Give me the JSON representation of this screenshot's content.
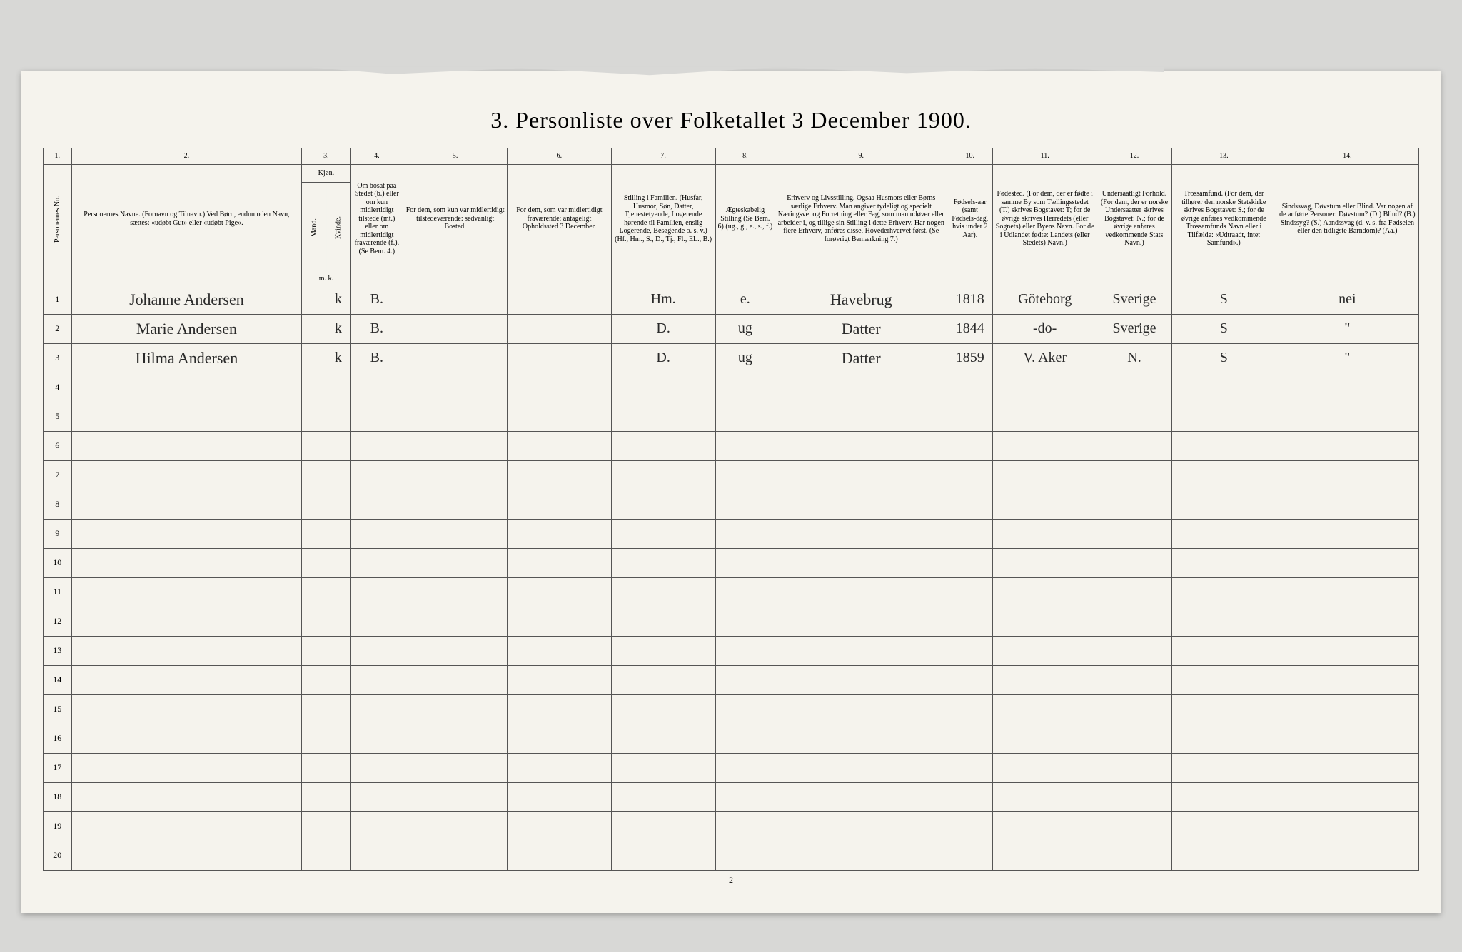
{
  "title": "3. Personliste over Folketallet 3 December 1900.",
  "page_footer": "2",
  "colors": {
    "page_bg": "#d8d8d6",
    "paper": "#f5f3ed",
    "rule": "#555555",
    "ink": "#2a2a2a"
  },
  "column_numbers": [
    "1.",
    "2.",
    "3.",
    "4.",
    "5.",
    "6.",
    "7.",
    "8.",
    "9.",
    "10.",
    "11.",
    "12.",
    "13.",
    "14."
  ],
  "headers": {
    "c1": "Personernes No.",
    "c2": "Personernes Navne.\n(Fornavn og Tilnavn.)\nVed Børn, endnu uden Navn, sættes: «udøbt Gut» eller «udøbt Pige».",
    "c3": "Kjøn.",
    "c3m": "Mand.",
    "c3k": "Kvinde.",
    "c3mk": "m.  k.",
    "c4": "Om bosat paa Stedet (b.) eller om kun midlertidigt tilstede (mt.) eller om midlertidigt fraværende (f.).\n(Se Bem. 4.)",
    "c5": "For dem, som kun var midlertidigt tilstedeværende:\nsedvanligt Bosted.",
    "c6": "For dem, som var midlertidigt fraværende:\nantageligt Opholdssted 3 December.",
    "c7": "Stilling i Familien.\n(Husfar, Husmor, Søn, Datter, Tjenestetyende, Logerende hørende til Familien, enslig Logerende, Besøgende o. s. v.)\n(Hf., Hm., S., D., Tj., Fl., EL., B.)",
    "c8": "Ægteskabelig Stilling\n(Se Bem. 6)\n(ug., g., e., s., f.)",
    "c9": "Erhverv og Livsstilling.\nOgsaa Husmors eller Børns særlige Erhverv. Man angiver tydeligt og specielt Næringsvei og Forretning eller Fag, som man udøver eller arbeider i, og tillige sin Stilling i dette Erhverv.\nHar nogen flere Erhverv, anføres disse, Hovederhvervet først.\n(Se forøvrigt Bemærkning 7.)",
    "c10": "Fødsels-aar\n(samt Fødsels-dag, hvis under 2 Aar).",
    "c11": "Fødested.\n(For dem, der er fødte i samme By som Tællingsstedet (T.) skrives Bogstavet: T; for de øvrige skrives Herredets (eller Sognets) eller Byens Navn. For de i Udlandet fødte: Landets (eller Stedets) Navn.)",
    "c12": "Undersaatligt Forhold.\n(For dem, der er norske Undersaatter skrives Bogstavet: N.; for de øvrige anføres vedkommende Stats Navn.)",
    "c13": "Trossamfund.\n(For dem, der tilhører den norske Statskirke skrives Bogstavet: S.; for de øvrige anføres vedkommende Trossamfunds Navn eller i Tilfælde: «Udtraadt, intet Samfund».)",
    "c14": "Sindssvag, Døvstum eller Blind.\nVar nogen af de anførte Personer:\nDøvstum? (D.)\nBlind? (B.)\nSindssyg? (S.)\nAandssvag (d. v. s. fra Fødselen eller den tidligste Barndom)? (Aa.)"
  },
  "rows": [
    {
      "n": "1",
      "name": "Johanne Andersen",
      "sex": "k",
      "bosat": "B.",
      "c5": "",
      "c6": "",
      "stilling": "Hm.",
      "aegte": "e.",
      "erhverv": "Havebrug",
      "aar": "1818",
      "fodested": "Göteborg",
      "forhold": "Sverige",
      "tros": "S",
      "svak": "nei"
    },
    {
      "n": "2",
      "name": "Marie Andersen",
      "sex": "k",
      "bosat": "B.",
      "c5": "",
      "c6": "",
      "stilling": "D.",
      "aegte": "ug",
      "erhverv": "Datter",
      "aar": "1844",
      "fodested": "-do-",
      "forhold": "Sverige",
      "tros": "S",
      "svak": "\""
    },
    {
      "n": "3",
      "name": "Hilma Andersen",
      "sex": "k",
      "bosat": "B.",
      "c5": "",
      "c6": "",
      "stilling": "D.",
      "aegte": "ug",
      "erhverv": "Datter",
      "aar": "1859",
      "fodested": "V. Aker",
      "forhold": "N.",
      "tros": "S",
      "svak": "\""
    }
  ],
  "empty_rows": [
    "4",
    "5",
    "6",
    "7",
    "8",
    "9",
    "10",
    "11",
    "12",
    "13",
    "14",
    "15",
    "16",
    "17",
    "18",
    "19",
    "20"
  ]
}
